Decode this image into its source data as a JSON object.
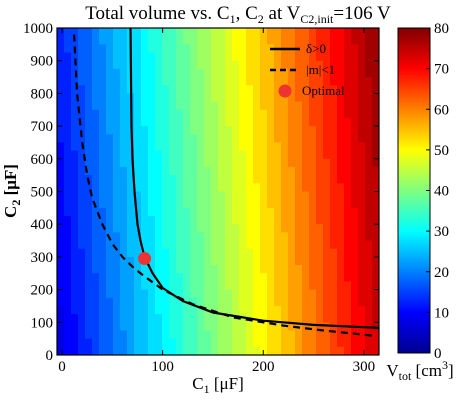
{
  "chart_data": {
    "type": "heatmap",
    "title": {
      "main": "Total volume vs. C",
      "sub1": "1",
      "mid": ", C",
      "sub2": "2",
      "mid2": " at V",
      "sub3": "C2,init",
      "end": "=106 V"
    },
    "xlabel": {
      "main": "C",
      "sub": "1",
      "unit": " [μF]"
    },
    "ylabel": {
      "main": "C",
      "sub": "2",
      "unit": " [μF]"
    },
    "xlim": [
      -5,
      315
    ],
    "ylim": [
      0,
      1000
    ],
    "xticks": [
      0,
      100,
      200,
      300
    ],
    "yticks": [
      0,
      100,
      200,
      300,
      400,
      500,
      600,
      700,
      800,
      900,
      1000
    ],
    "colorbar": {
      "label": {
        "main": "V",
        "sub": "tot",
        "unit": " [cm",
        "sup": "3",
        "close": "]"
      },
      "range": [
        0,
        80
      ],
      "ticks": [
        0,
        10,
        20,
        30,
        40,
        50,
        60,
        70,
        80
      ],
      "colormap": [
        "#00008f",
        "#0000ff",
        "#0080ff",
        "#00ffff",
        "#80ff80",
        "#ffff00",
        "#ff8000",
        "#ff0000",
        "#800000"
      ]
    },
    "background_model": {
      "base": 8,
      "per_c1": 0.21,
      "per_c2": 0.005,
      "color_max": 80
    },
    "series": [
      {
        "name": "δ>0",
        "style": "solid",
        "color": "#000000",
        "points": [
          [
            68,
            1000
          ],
          [
            68.5,
            850
          ],
          [
            69,
            700
          ],
          [
            70,
            600
          ],
          [
            72,
            500
          ],
          [
            75,
            400
          ],
          [
            78,
            350
          ],
          [
            82,
            300
          ],
          [
            90,
            250
          ],
          [
            100,
            205
          ],
          [
            120,
            165
          ],
          [
            150,
            130
          ],
          [
            200,
            105
          ],
          [
            250,
            92
          ],
          [
            300,
            85
          ],
          [
            315,
            83
          ]
        ]
      },
      {
        "name": "|m|<1",
        "style": "dashed",
        "color": "#000000",
        "points": [
          [
            12,
            980
          ],
          [
            15,
            800
          ],
          [
            20,
            650
          ],
          [
            25,
            550
          ],
          [
            30,
            480
          ],
          [
            40,
            400
          ],
          [
            50,
            340
          ],
          [
            60,
            300
          ],
          [
            70,
            270
          ],
          [
            80,
            245
          ],
          [
            100,
            200
          ],
          [
            130,
            155
          ],
          [
            170,
            115
          ],
          [
            220,
            90
          ],
          [
            260,
            75
          ],
          [
            300,
            62
          ],
          [
            312,
            58
          ]
        ]
      }
    ],
    "optimal": {
      "name": "Optimal",
      "x": 82,
      "y": 295,
      "color": "#ee3333"
    },
    "legend": {
      "position": "top-right"
    }
  }
}
